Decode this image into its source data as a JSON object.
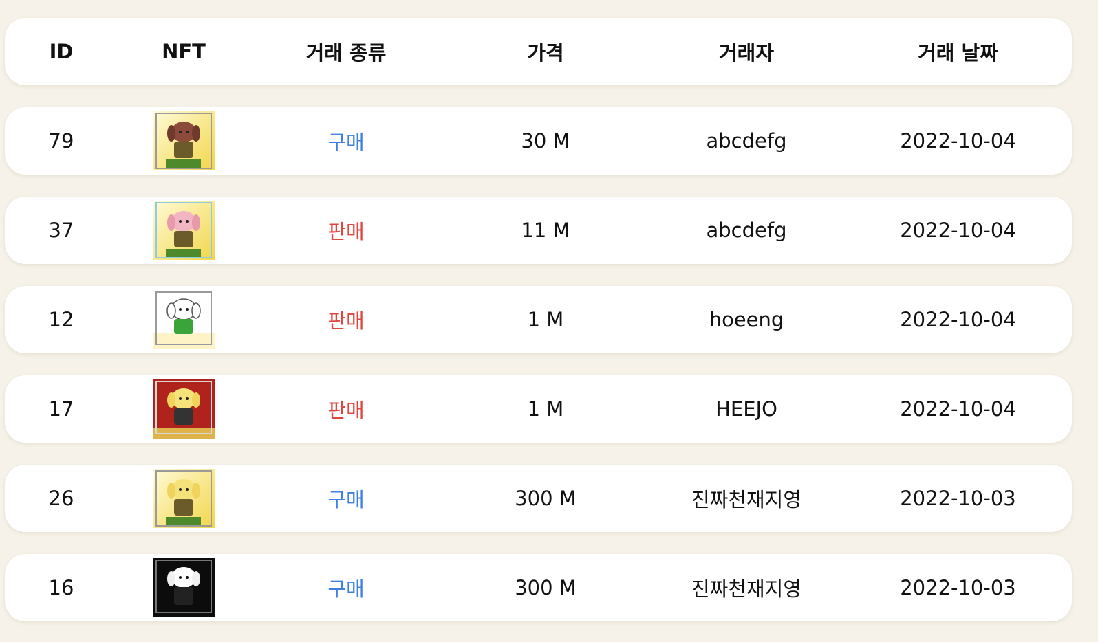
{
  "columns": {
    "id": "ID",
    "nft": "NFT",
    "type": "거래 종류",
    "price": "가격",
    "trader": "거래자",
    "date": "거래 날짜"
  },
  "colors": {
    "background": "#f6f2e9",
    "buy": "#3f80e0",
    "sell": "#e0463d"
  },
  "rows": [
    {
      "id": "79",
      "nft_icon": "brown-dog-nft-icon",
      "type": "구매",
      "kind": "buy",
      "price": "30 M",
      "trader": "abcdefg",
      "date": "2022-10-04"
    },
    {
      "id": "37",
      "nft_icon": "pink-dog-nft-icon",
      "type": "판매",
      "kind": "sell",
      "price": "11 M",
      "trader": "abcdefg",
      "date": "2022-10-04"
    },
    {
      "id": "12",
      "nft_icon": "white-dog-nft-icon",
      "type": "판매",
      "kind": "sell",
      "price": "1 M",
      "trader": "hoeeng",
      "date": "2022-10-04"
    },
    {
      "id": "17",
      "nft_icon": "yellow-dog-red-nft-icon",
      "type": "판매",
      "kind": "sell",
      "price": "1 M",
      "trader": "HEEJO",
      "date": "2022-10-04"
    },
    {
      "id": "26",
      "nft_icon": "yellow-dog-nft-icon",
      "type": "구매",
      "kind": "buy",
      "price": "300 M",
      "trader": "진짜천재지영",
      "date": "2022-10-03"
    },
    {
      "id": "16",
      "nft_icon": "white-dog-black-nft-icon",
      "type": "구매",
      "kind": "buy",
      "price": "300 M",
      "trader": "진짜천재지영",
      "date": "2022-10-03"
    }
  ]
}
